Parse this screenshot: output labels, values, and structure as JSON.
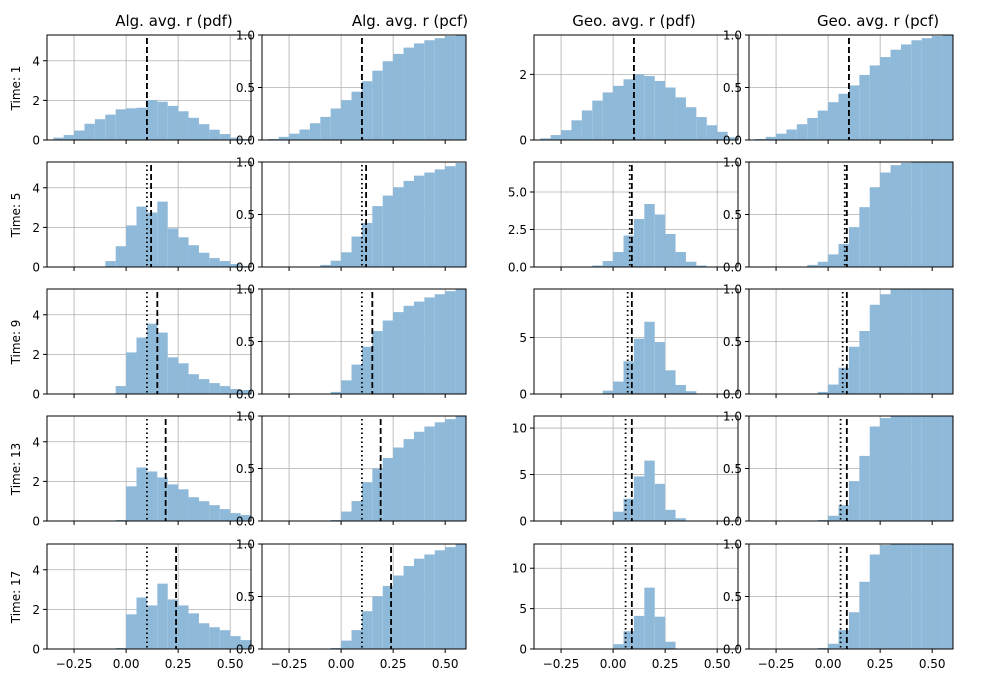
{
  "figure": {
    "column_titles": [
      "Alg. avg. r (pdf)",
      "Alg. avg. r (pcf)",
      "Geo. avg. r (pdf)",
      "Geo. avg. r (pcf)"
    ],
    "row_labels": [
      "Time: 1",
      "Time: 5",
      "Time: 9",
      "Time: 13",
      "Time: 17"
    ]
  },
  "colors": {
    "bar": "#8fb9d9",
    "grid": "#b0b0b0",
    "line": "#000000"
  },
  "chart_data": {
    "type": "bar",
    "layout": "5x4 grid of histograms",
    "xlim": [
      -0.38,
      0.6
    ],
    "xticks": [
      -0.25,
      0.0,
      0.25,
      0.5
    ],
    "xtick_labels": [
      "−0.25",
      "0.00",
      "0.25",
      "0.50"
    ],
    "bins": {
      "alg": {
        "start": -0.35,
        "width": 0.05,
        "count": 19
      },
      "geo": {
        "start": -0.35,
        "width": 0.05,
        "count": 19
      }
    },
    "dotted_line_label": "dotted",
    "dashed_line_label": "dashed",
    "panels": [
      {
        "row": "Time: 1",
        "column": "Alg. avg. r (pdf)",
        "ylim": [
          0,
          5.3
        ],
        "yticks": [
          0,
          2,
          4
        ],
        "ytick_labels": [
          "0",
          "2",
          "4"
        ],
        "values": [
          0.12,
          0.25,
          0.48,
          0.82,
          1.05,
          1.28,
          1.55,
          1.6,
          1.63,
          2.02,
          1.93,
          1.72,
          1.45,
          1.12,
          0.8,
          0.52,
          0.3,
          0.12,
          0.05
        ],
        "dotted": 0.1,
        "dashed": 0.1
      },
      {
        "row": "Time: 1",
        "column": "Alg. avg. r (pcf)",
        "ylim": [
          0,
          1.0
        ],
        "yticks": [
          0,
          0.5,
          1.0
        ],
        "ytick_labels": [
          "0.0",
          "0.5",
          "1.0"
        ],
        "values": [
          0.01,
          0.03,
          0.06,
          0.1,
          0.16,
          0.22,
          0.3,
          0.38,
          0.46,
          0.56,
          0.66,
          0.75,
          0.82,
          0.88,
          0.92,
          0.95,
          0.97,
          0.99,
          1.0
        ],
        "dotted": 0.1,
        "dashed": 0.1
      },
      {
        "row": "Time: 1",
        "column": "Geo. avg. r (pdf)",
        "ylim": [
          0,
          3.2
        ],
        "yticks": [
          0,
          2
        ],
        "ytick_labels": [
          "0",
          "2"
        ],
        "values": [
          0.05,
          0.15,
          0.3,
          0.6,
          0.9,
          1.2,
          1.45,
          1.65,
          1.85,
          2.0,
          1.95,
          1.8,
          1.6,
          1.3,
          1.0,
          0.7,
          0.45,
          0.25,
          0.08
        ],
        "dotted": 0.1,
        "dashed": 0.1
      },
      {
        "row": "Time: 1",
        "column": "Geo. avg. r (pcf)",
        "ylim": [
          0,
          1.0
        ],
        "yticks": [
          0,
          0.5,
          1.0
        ],
        "ytick_labels": [
          "0.0",
          "0.5",
          "1.0"
        ],
        "values": [
          0.01,
          0.03,
          0.06,
          0.1,
          0.15,
          0.21,
          0.28,
          0.36,
          0.44,
          0.52,
          0.62,
          0.71,
          0.79,
          0.86,
          0.91,
          0.95,
          0.97,
          0.99,
          1.0
        ],
        "dotted": 0.1,
        "dashed": 0.1
      },
      {
        "row": "Time: 5",
        "column": "Alg. avg. r (pdf)",
        "ylim": [
          0,
          5.3
        ],
        "yticks": [
          0,
          2,
          4
        ],
        "ytick_labels": [
          "0",
          "2",
          "4"
        ],
        "values": [
          0,
          0,
          0,
          0,
          0,
          0.3,
          1.05,
          2.1,
          3.05,
          2.75,
          3.3,
          1.95,
          1.5,
          1.1,
          0.72,
          0.45,
          0.3,
          0.15,
          0.05
        ],
        "dotted": 0.1,
        "dashed": 0.12
      },
      {
        "row": "Time: 5",
        "column": "Alg. avg. r (pcf)",
        "ylim": [
          0,
          1.0
        ],
        "yticks": [
          0,
          0.5,
          1.0
        ],
        "ytick_labels": [
          "0.0",
          "0.5",
          "1.0"
        ],
        "values": [
          0,
          0,
          0,
          0,
          0,
          0.02,
          0.06,
          0.14,
          0.29,
          0.42,
          0.58,
          0.68,
          0.76,
          0.82,
          0.87,
          0.9,
          0.93,
          0.96,
          0.99
        ],
        "dotted": 0.1,
        "dashed": 0.12
      },
      {
        "row": "Time: 5",
        "column": "Geo. avg. r (pdf)",
        "ylim": [
          0,
          7.0
        ],
        "yticks": [
          0,
          2.5,
          5.0
        ],
        "ytick_labels": [
          "0.0",
          "2.5",
          "5.0"
        ],
        "values": [
          0,
          0,
          0,
          0,
          0,
          0.1,
          0.4,
          1.0,
          2.1,
          3.2,
          4.2,
          3.5,
          2.2,
          1.0,
          0.35,
          0.1,
          0,
          0,
          0
        ],
        "dotted": 0.08,
        "dashed": 0.09
      },
      {
        "row": "Time: 5",
        "column": "Geo. avg. r (pcf)",
        "ylim": [
          0,
          1.0
        ],
        "yticks": [
          0,
          0.5,
          1.0
        ],
        "ytick_labels": [
          "0.0",
          "0.5",
          "1.0"
        ],
        "values": [
          0,
          0,
          0,
          0,
          0,
          0.02,
          0.05,
          0.12,
          0.22,
          0.38,
          0.57,
          0.76,
          0.9,
          0.97,
          0.99,
          1.0,
          1.0,
          1.0,
          1.0
        ],
        "dotted": 0.08,
        "dashed": 0.09
      },
      {
        "row": "Time: 9",
        "column": "Alg. avg. r (pdf)",
        "ylim": [
          0,
          5.3
        ],
        "yticks": [
          0,
          2,
          4
        ],
        "ytick_labels": [
          "0",
          "2",
          "4"
        ],
        "values": [
          0,
          0,
          0,
          0,
          0,
          0,
          0.4,
          2.1,
          2.85,
          3.55,
          3.1,
          1.85,
          1.55,
          1.0,
          0.75,
          0.55,
          0.4,
          0.25,
          0.2
        ],
        "dotted": 0.1,
        "dashed": 0.15
      },
      {
        "row": "Time: 9",
        "column": "Alg. avg. r (pcf)",
        "ylim": [
          0,
          1.0
        ],
        "yticks": [
          0,
          0.5,
          1.0
        ],
        "ytick_labels": [
          "0.0",
          "0.5",
          "1.0"
        ],
        "values": [
          0,
          0,
          0,
          0,
          0,
          0,
          0.02,
          0.13,
          0.28,
          0.45,
          0.6,
          0.7,
          0.78,
          0.84,
          0.88,
          0.92,
          0.95,
          0.98,
          1.0
        ],
        "dotted": 0.1,
        "dashed": 0.15
      },
      {
        "row": "Time: 9",
        "column": "Geo. avg. r (pdf)",
        "ylim": [
          0,
          9.3
        ],
        "yticks": [
          0,
          5
        ],
        "ytick_labels": [
          "0",
          "5"
        ],
        "values": [
          0,
          0,
          0,
          0,
          0,
          0,
          0.3,
          1.1,
          2.9,
          4.9,
          6.4,
          4.6,
          2.1,
          0.8,
          0.25,
          0,
          0,
          0,
          0
        ],
        "dotted": 0.07,
        "dashed": 0.09
      },
      {
        "row": "Time: 9",
        "column": "Geo. avg. r (pcf)",
        "ylim": [
          0,
          1.0
        ],
        "yticks": [
          0,
          0.5,
          1.0
        ],
        "ytick_labels": [
          "0.0",
          "0.5",
          "1.0"
        ],
        "values": [
          0,
          0,
          0,
          0,
          0,
          0,
          0.02,
          0.09,
          0.25,
          0.45,
          0.6,
          0.85,
          0.95,
          1.0,
          1.0,
          1.0,
          1.0,
          1.0,
          1.0
        ],
        "dotted": 0.07,
        "dashed": 0.09
      },
      {
        "row": "Time: 13",
        "column": "Alg. avg. r (pdf)",
        "ylim": [
          0,
          5.3
        ],
        "yticks": [
          0,
          2,
          4
        ],
        "ytick_labels": [
          "0",
          "2",
          "4"
        ],
        "values": [
          0,
          0,
          0,
          0,
          0,
          0,
          0.05,
          1.75,
          2.7,
          2.5,
          2.2,
          1.85,
          1.6,
          1.2,
          1.0,
          0.8,
          0.6,
          0.4,
          0.3
        ],
        "dotted": 0.1,
        "dashed": 0.19
      },
      {
        "row": "Time: 13",
        "column": "Alg. avg. r (pcf)",
        "ylim": [
          0,
          1.0
        ],
        "yticks": [
          0,
          0.5,
          1.0
        ],
        "ytick_labels": [
          "0.0",
          "0.5",
          "1.0"
        ],
        "values": [
          0,
          0,
          0,
          0,
          0,
          0,
          0.01,
          0.09,
          0.19,
          0.37,
          0.5,
          0.6,
          0.7,
          0.78,
          0.85,
          0.9,
          0.94,
          0.97,
          1.0
        ],
        "dotted": 0.1,
        "dashed": 0.19
      },
      {
        "row": "Time: 13",
        "column": "Geo. avg. r (pdf)",
        "ylim": [
          0,
          11.3
        ],
        "yticks": [
          0,
          5,
          10
        ],
        "ytick_labels": [
          "0",
          "5",
          "10"
        ],
        "values": [
          0,
          0,
          0,
          0,
          0,
          0,
          0.05,
          1.0,
          2.4,
          4.8,
          6.5,
          4.0,
          1.2,
          0.3,
          0,
          0,
          0,
          0,
          0
        ],
        "dotted": 0.06,
        "dashed": 0.09
      },
      {
        "row": "Time: 13",
        "column": "Geo. avg. r (pcf)",
        "ylim": [
          0,
          1.0
        ],
        "yticks": [
          0,
          0.5,
          1.0
        ],
        "ytick_labels": [
          "0.0",
          "0.5",
          "1.0"
        ],
        "values": [
          0,
          0,
          0,
          0,
          0,
          0,
          0.01,
          0.05,
          0.15,
          0.38,
          0.62,
          0.9,
          0.98,
          1.0,
          1.0,
          1.0,
          1.0,
          1.0,
          1.0
        ],
        "dotted": 0.06,
        "dashed": 0.09
      },
      {
        "row": "Time: 17",
        "column": "Alg. avg. r (pdf)",
        "ylim": [
          0,
          5.3
        ],
        "yticks": [
          0,
          2,
          4
        ],
        "ytick_labels": [
          "0",
          "2",
          "4"
        ],
        "values": [
          0,
          0,
          0,
          0,
          0,
          0,
          0.05,
          1.75,
          2.6,
          2.2,
          3.3,
          2.5,
          2.2,
          1.8,
          1.3,
          1.1,
          0.95,
          0.65,
          0.45
        ],
        "dotted": 0.1,
        "dashed": 0.24
      },
      {
        "row": "Time: 17",
        "column": "Alg. avg. r (pcf)",
        "ylim": [
          0,
          1.0
        ],
        "yticks": [
          0,
          0.5,
          1.0
        ],
        "ytick_labels": [
          "0.0",
          "0.5",
          "1.0"
        ],
        "values": [
          0,
          0,
          0,
          0,
          0,
          0,
          0.01,
          0.08,
          0.18,
          0.36,
          0.5,
          0.6,
          0.7,
          0.79,
          0.86,
          0.9,
          0.94,
          0.97,
          1.0
        ],
        "dotted": 0.1,
        "dashed": 0.24
      },
      {
        "row": "Time: 17",
        "column": "Geo. avg. r (pdf)",
        "ylim": [
          0,
          13.0
        ],
        "yticks": [
          0,
          5,
          10
        ],
        "ytick_labels": [
          "0",
          "5",
          "10"
        ],
        "values": [
          0,
          0,
          0,
          0,
          0,
          0,
          0.05,
          0.6,
          2.2,
          4.1,
          7.6,
          4.0,
          0.9,
          0.05,
          0,
          0,
          0,
          0,
          0
        ],
        "dotted": 0.06,
        "dashed": 0.09
      },
      {
        "row": "Time: 17",
        "column": "Geo. avg. r (pcf)",
        "ylim": [
          0,
          1.0
        ],
        "yticks": [
          0,
          0.5,
          1.0
        ],
        "ytick_labels": [
          "0.0",
          "0.5",
          "1.0"
        ],
        "values": [
          0,
          0,
          0,
          0,
          0,
          0,
          0.01,
          0.05,
          0.18,
          0.35,
          0.64,
          0.9,
          0.99,
          1.0,
          1.0,
          1.0,
          1.0,
          1.0,
          1.0
        ],
        "dotted": 0.06,
        "dashed": 0.09
      }
    ]
  }
}
